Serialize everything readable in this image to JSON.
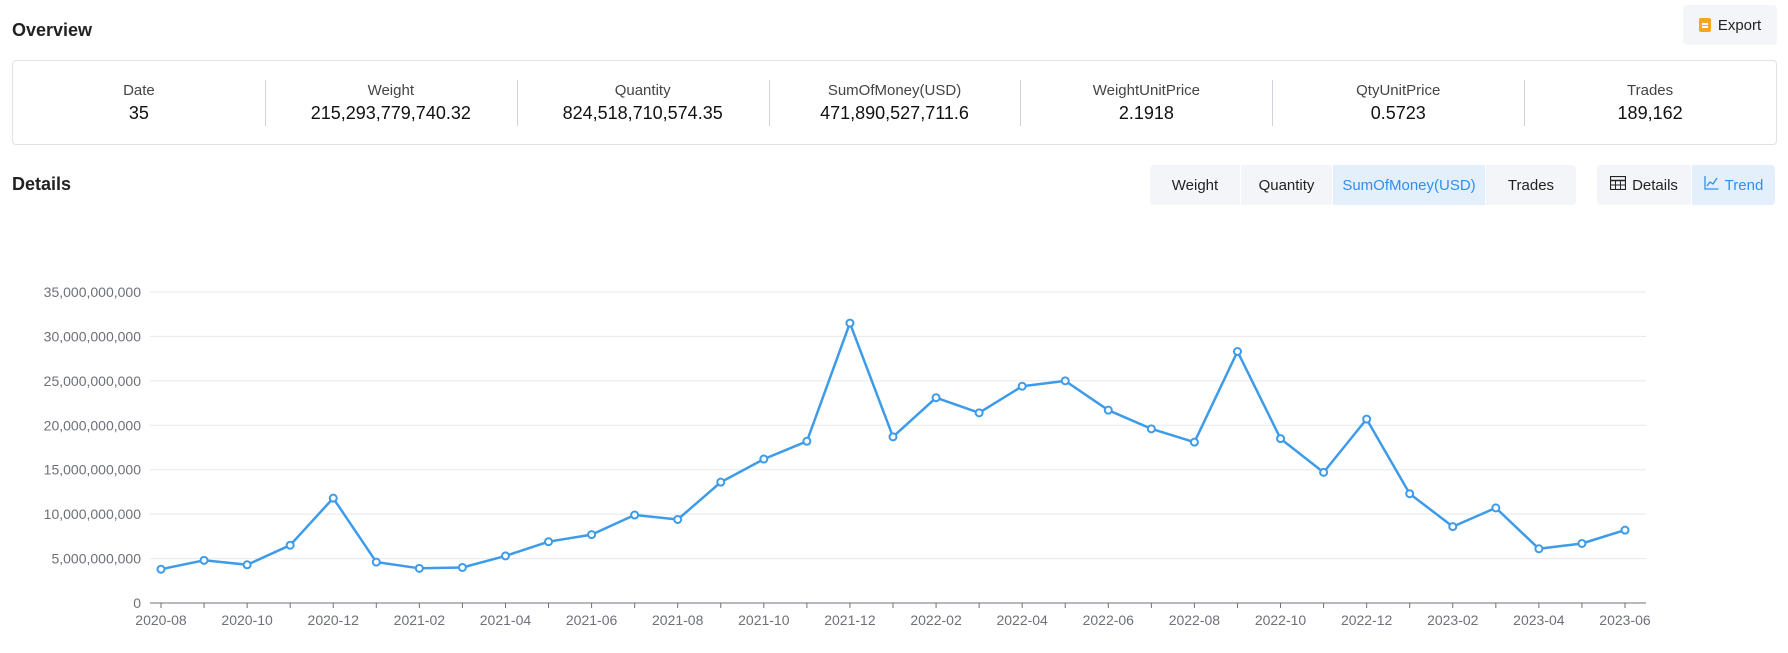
{
  "overview": {
    "title": "Overview",
    "export_label": "Export",
    "stats": [
      {
        "label": "Date",
        "value": "35"
      },
      {
        "label": "Weight",
        "value": "215,293,779,740.32"
      },
      {
        "label": "Quantity",
        "value": "824,518,710,574.35"
      },
      {
        "label": "SumOfMoney(USD)",
        "value": "471,890,527,711.6"
      },
      {
        "label": "WeightUnitPrice",
        "value": "2.1918"
      },
      {
        "label": "QtyUnitPrice",
        "value": "0.5723"
      },
      {
        "label": "Trades",
        "value": "189,162"
      }
    ]
  },
  "details": {
    "title": "Details",
    "metric_tabs": [
      {
        "label": "Weight",
        "active": false
      },
      {
        "label": "Quantity",
        "active": false
      },
      {
        "label": "SumOfMoney(USD)",
        "active": true
      },
      {
        "label": "Trades",
        "active": false
      }
    ],
    "view_tabs": [
      {
        "label": "Details",
        "icon": "table-icon",
        "active": false
      },
      {
        "label": "Trend",
        "icon": "line-chart-icon",
        "active": true
      }
    ]
  },
  "colors": {
    "accent": "#2e8ff0",
    "series": "#3d9be9",
    "grid": "#e6e8eb",
    "axis": "#6e7079"
  },
  "chart_data": {
    "type": "line",
    "title": "",
    "xlabel": "",
    "ylabel": "",
    "ylim": [
      0,
      35000000000
    ],
    "yticks": [
      0,
      5000000000,
      10000000000,
      15000000000,
      20000000000,
      25000000000,
      30000000000,
      35000000000
    ],
    "ytick_labels": [
      "0",
      "5,000,000,000",
      "10,000,000,000",
      "15,000,000,000",
      "20,000,000,000",
      "25,000,000,000",
      "30,000,000,000",
      "35,000,000,000"
    ],
    "x_labels_shown": [
      "2020-08",
      "2020-10",
      "2020-12",
      "2021-02",
      "2021-04",
      "2021-06",
      "2021-08",
      "2021-10",
      "2021-12",
      "2022-02",
      "2022-04",
      "2022-06",
      "2022-08",
      "2022-10",
      "2022-12",
      "2023-02",
      "2023-04",
      "2023-06"
    ],
    "grid": true,
    "legend": "none",
    "categories": [
      "2020-08",
      "2020-09",
      "2020-10",
      "2020-11",
      "2020-12",
      "2021-01",
      "2021-02",
      "2021-03",
      "2021-04",
      "2021-05",
      "2021-06",
      "2021-07",
      "2021-08",
      "2021-09",
      "2021-10",
      "2021-11",
      "2021-12",
      "2022-01",
      "2022-02",
      "2022-03",
      "2022-04",
      "2022-05",
      "2022-06",
      "2022-07",
      "2022-08",
      "2022-09",
      "2022-10",
      "2022-11",
      "2022-12",
      "2023-01",
      "2023-02",
      "2023-03",
      "2023-04",
      "2023-05",
      "2023-06"
    ],
    "values": [
      3800000000,
      4800000000,
      4300000000,
      6500000000,
      11800000000,
      4600000000,
      3900000000,
      4000000000,
      5300000000,
      6900000000,
      7700000000,
      9900000000,
      9400000000,
      13600000000,
      16200000000,
      18200000000,
      31500000000,
      18700000000,
      23100000000,
      21400000000,
      24400000000,
      25000000000,
      21700000000,
      19600000000,
      18100000000,
      28300000000,
      18500000000,
      14700000000,
      20700000000,
      12300000000,
      8600000000,
      10700000000,
      6100000000,
      6700000000,
      8200000000
    ]
  }
}
